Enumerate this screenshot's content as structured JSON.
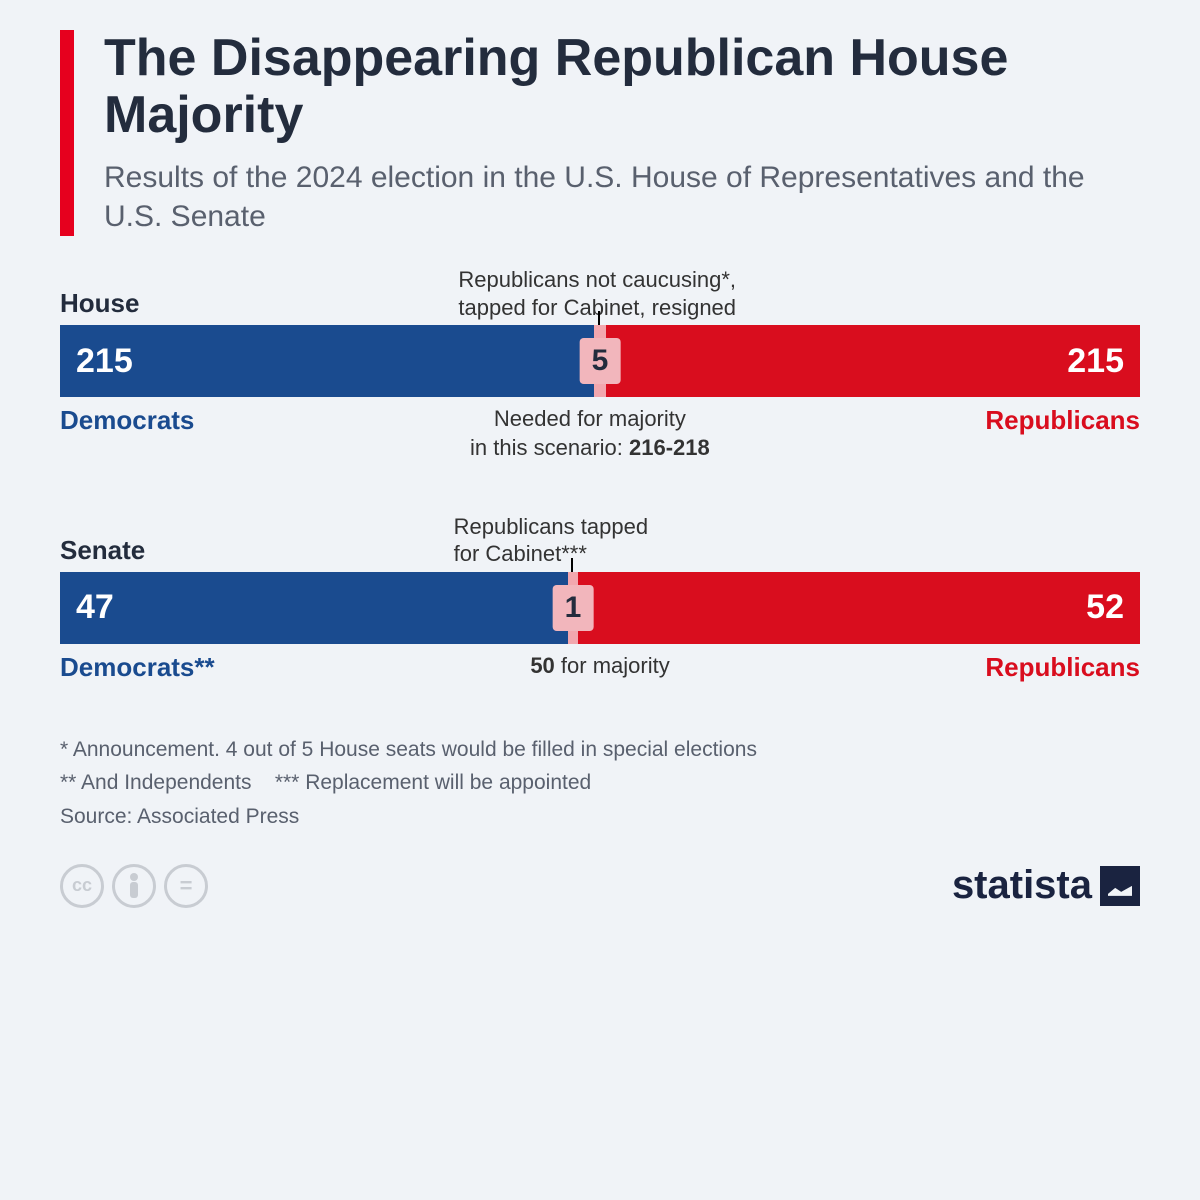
{
  "title": "The Disappearing Republican House Majority",
  "subtitle": "Results of the 2024 election in the U.S. House of Representatives and the U.S. Senate",
  "colors": {
    "accent_red": "#e6001e",
    "dem": "#1a4b8f",
    "rep": "#d90d1e",
    "mid": "#f2a7ae",
    "mid_box": "#f2b6bc",
    "text_dark": "#232c3d",
    "text_muted": "#59606e",
    "background": "#f0f3f7"
  },
  "house": {
    "label": "House",
    "annotation_top_1": "Republicans not caucusing*,",
    "annotation_top_2": "tapped for Cabinet, resigned",
    "dem_value": "215",
    "mid_value": "5",
    "rep_value": "215",
    "dem_label": "Democrats",
    "rep_label": "Republicans",
    "below_line1": "Needed for majority",
    "below_line2_prefix": "in this scenario: ",
    "below_line2_bold": "216-218",
    "dem_pct": 49.4,
    "mid_pct": 1.2,
    "rep_pct": 49.4
  },
  "senate": {
    "label": "Senate",
    "annotation_top_1": "Republicans tapped",
    "annotation_top_2": "for Cabinet***",
    "dem_value": "47",
    "mid_value": "1",
    "rep_value": "52",
    "dem_label": "Democrats**",
    "rep_label": "Republicans",
    "below_bold": "50",
    "below_rest": " for majority",
    "dem_pct": 47,
    "mid_pct": 1,
    "rep_pct": 52
  },
  "footnotes": {
    "f1": "*   Announcement. 4 out of 5 House seats would be filled in special elections",
    "f2": "** And Independents    *** Replacement will be appointed",
    "source": "Source: Associated Press"
  },
  "logo_text": "statista",
  "cc": {
    "a": "cc",
    "b": "i",
    "c": "="
  }
}
